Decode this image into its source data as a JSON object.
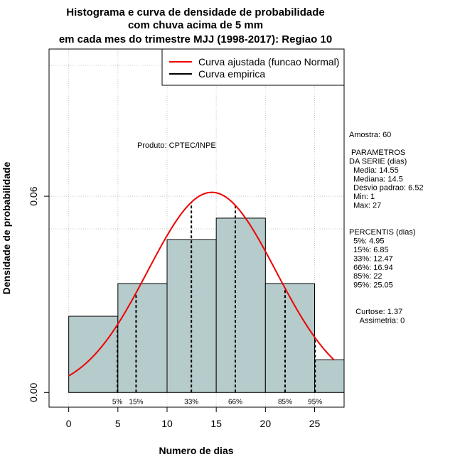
{
  "chart_data": {
    "type": "histogram",
    "title": [
      "Histograma e curva de densidade de probabilidade",
      "com chuva acima de 5 mm",
      "em cada mes do trimestre MJJ (1998-2017): Regiao 10"
    ],
    "xlabel": "Numero de dias",
    "ylabel": "Densidade de probabilidade",
    "xlim": [
      -2,
      28
    ],
    "ylim": [
      -0.0045,
      0.105
    ],
    "x_ticks": [
      0,
      5,
      10,
      15,
      20,
      25
    ],
    "x_tick_labels": [
      "0",
      "5",
      "10",
      "15",
      "20",
      "25"
    ],
    "y_ticks": [
      0.0,
      0.06
    ],
    "y_tick_labels": [
      "0.00",
      "0.06"
    ],
    "bins": [
      {
        "x0": 0,
        "x1": 5,
        "density": 0.0233
      },
      {
        "x0": 5,
        "x1": 10,
        "density": 0.0333
      },
      {
        "x0": 10,
        "x1": 15,
        "density": 0.0467
      },
      {
        "x0": 15,
        "x1": 20,
        "density": 0.0533
      },
      {
        "x0": 20,
        "x1": 25,
        "density": 0.0333
      },
      {
        "x0": 25,
        "x1": 28,
        "density": 0.01
      }
    ],
    "bar_color": "#b6cbcb",
    "normal_curve": {
      "mean": 14.55,
      "sd": 6.52,
      "x_from": 0,
      "x_to": 27,
      "color": "#ee0000"
    },
    "grid_y": [
      0.06,
      0.05,
      0.1
    ],
    "grid_x": [
      0,
      5,
      10,
      15,
      20,
      25
    ],
    "percentile_lines": [
      {
        "x": 4.95,
        "label": "5%"
      },
      {
        "x": 6.85,
        "label": "15%"
      },
      {
        "x": 12.47,
        "label": "33%"
      },
      {
        "x": 16.94,
        "label": "66%"
      },
      {
        "x": 22,
        "label": "85%"
      },
      {
        "x": 25.05,
        "label": "95%"
      }
    ],
    "legend": {
      "position": "top-right",
      "entries": [
        {
          "label": "Curva ajustada (funcao Normal)",
          "color": "#ee0000"
        },
        {
          "label": "Curva empirica",
          "color": "#000000"
        }
      ]
    },
    "annotation_product": "Produto: CPTEC/INPE",
    "side_text": [
      "Amostra: 60",
      "",
      " PARAMETROS",
      "DA SERIE (dias)",
      "  Media: 14.55",
      "  Mediana: 14.5",
      "  Desvio padrao: 6.52",
      "  Min: 1",
      "  Max: 27",
      "",
      "",
      "PERCENTIS (dias)",
      "  5%: 4.95",
      "  15%: 6.85",
      "  33%: 12.47",
      "  66%: 16.94",
      "  85%: 22",
      "  95%: 25.05",
      "",
      "",
      "   Curtose: 1.37",
      "     Assimetria: 0"
    ]
  }
}
